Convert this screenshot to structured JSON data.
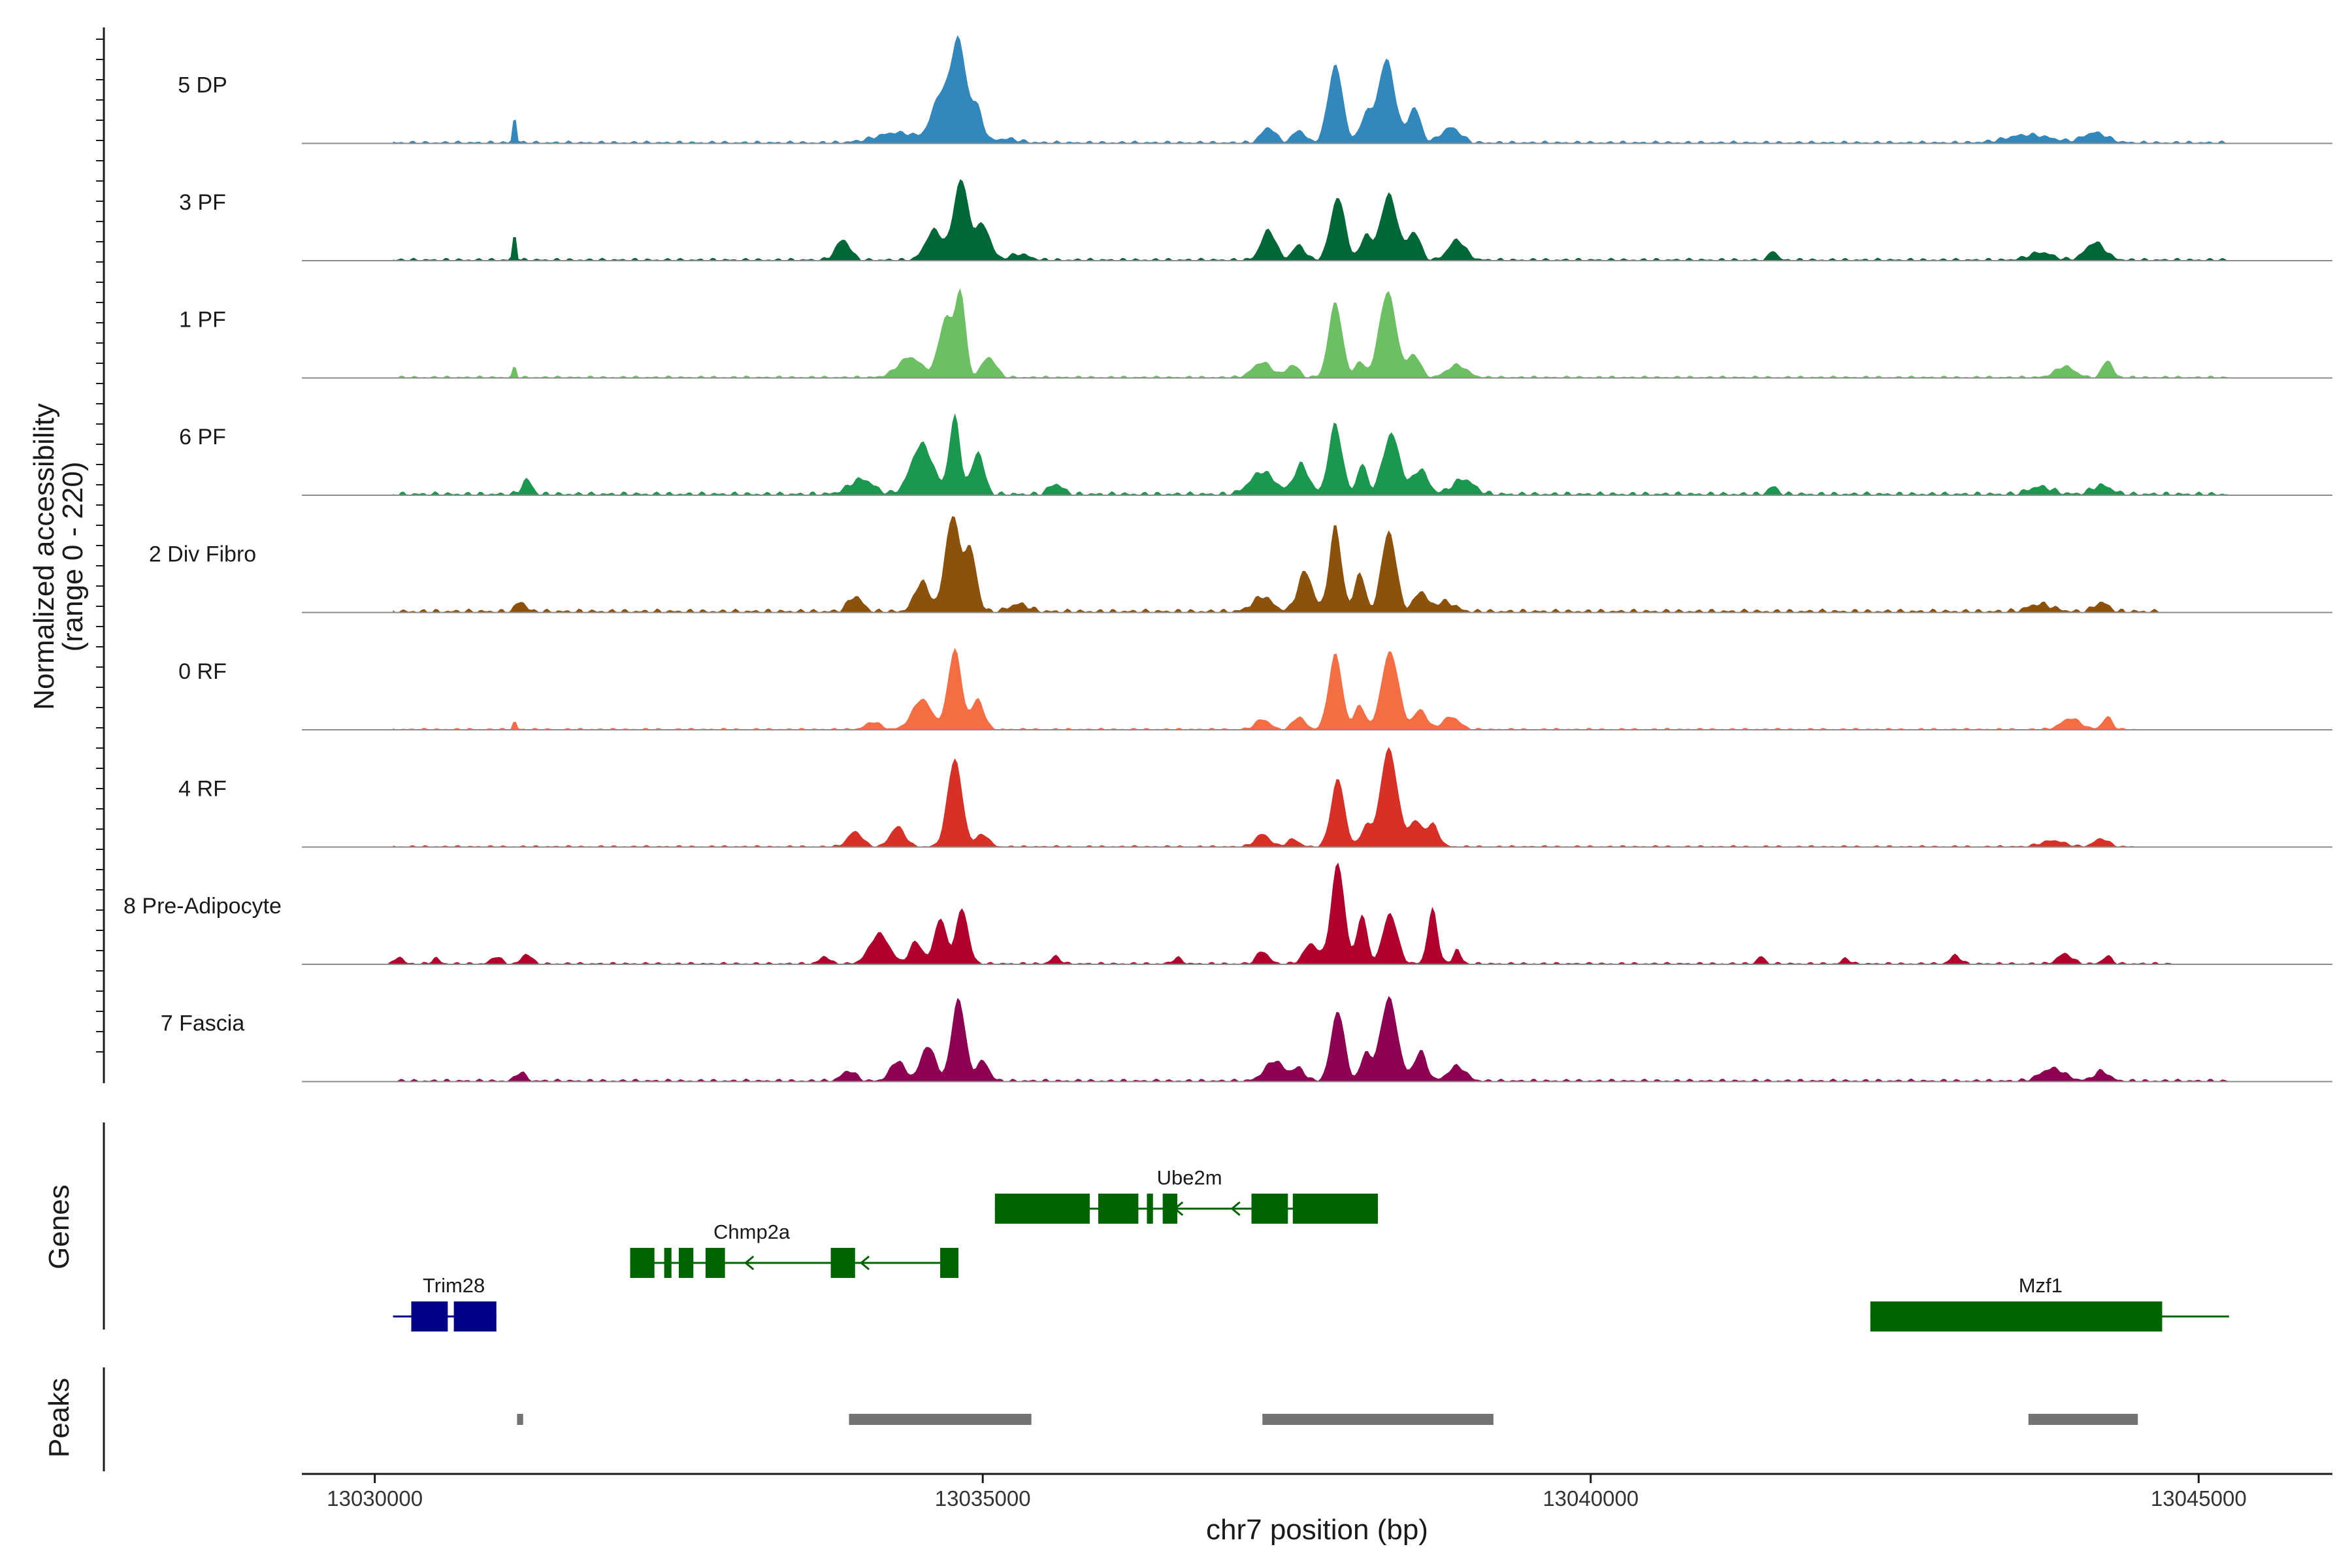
{
  "chart_data": {
    "type": "area",
    "xlabel": "chr7 position (bp)",
    "ylabel": [
      "Normalized accessibility",
      "(range 0 - 220)"
    ],
    "xlim": [
      13029400,
      13046100
    ],
    "ylim": [
      0,
      220
    ],
    "x_ticks": [
      {
        "value": 13030000,
        "label": "13030000"
      },
      {
        "value": 13035000,
        "label": "13035000"
      },
      {
        "value": 13040000,
        "label": "13040000"
      },
      {
        "value": 13045000,
        "label": "13045000"
      }
    ],
    "series": [
      {
        "name": "5 DP",
        "color": "#3288bd",
        "start": 13030150,
        "end": 13045250,
        "noise": 6,
        "bumps": [
          [
            13031150,
            60,
            14
          ],
          [
            13034300,
            20,
            180
          ],
          [
            13034650,
            90,
            70
          ],
          [
            13034800,
            200,
            60
          ],
          [
            13034950,
            70,
            50
          ],
          [
            13035200,
            8,
            100
          ],
          [
            13037350,
            30,
            60
          ],
          [
            13037600,
            25,
            50
          ],
          [
            13037900,
            155,
            60
          ],
          [
            13038150,
            55,
            45
          ],
          [
            13038320,
            165,
            70
          ],
          [
            13038550,
            70,
            50
          ],
          [
            13038850,
            30,
            80
          ],
          [
            13043600,
            16,
            180
          ],
          [
            13044150,
            20,
            100
          ]
        ]
      },
      {
        "name": "3 PF",
        "color": "#006837",
        "start": 13030150,
        "end": 13045250,
        "noise": 6,
        "bumps": [
          [
            13031150,
            60,
            14
          ],
          [
            13033850,
            40,
            60
          ],
          [
            13034600,
            60,
            70
          ],
          [
            13034820,
            160,
            60
          ],
          [
            13035000,
            70,
            60
          ],
          [
            13035300,
            12,
            80
          ],
          [
            13037350,
            60,
            60
          ],
          [
            13037600,
            30,
            50
          ],
          [
            13037920,
            125,
            60
          ],
          [
            13038150,
            50,
            40
          ],
          [
            13038340,
            130,
            70
          ],
          [
            13038550,
            55,
            50
          ],
          [
            13038900,
            40,
            70
          ],
          [
            13041500,
            20,
            30
          ],
          [
            13043700,
            15,
            100
          ],
          [
            13044150,
            35,
            80
          ]
        ]
      },
      {
        "name": "1 PF",
        "color": "#6cbf62",
        "start": 13030150,
        "end": 13045250,
        "noise": 5,
        "bumps": [
          [
            13031150,
            25,
            14
          ],
          [
            13034400,
            40,
            100
          ],
          [
            13034700,
            120,
            60
          ],
          [
            13034820,
            160,
            40
          ],
          [
            13035050,
            40,
            60
          ],
          [
            13037300,
            30,
            80
          ],
          [
            13037550,
            25,
            50
          ],
          [
            13037900,
            150,
            55
          ],
          [
            13038100,
            30,
            40
          ],
          [
            13038330,
            170,
            70
          ],
          [
            13038550,
            45,
            50
          ],
          [
            13038900,
            25,
            80
          ],
          [
            13043900,
            22,
            80
          ],
          [
            13044250,
            35,
            40
          ]
        ]
      },
      {
        "name": "6 PF",
        "color": "#1a9850",
        "start": 13030150,
        "end": 13045250,
        "noise": 8,
        "bumps": [
          [
            13031250,
            30,
            40
          ],
          [
            13034000,
            30,
            100
          ],
          [
            13034500,
            100,
            90
          ],
          [
            13034770,
            155,
            45
          ],
          [
            13034960,
            85,
            50
          ],
          [
            13035600,
            20,
            60
          ],
          [
            13037300,
            45,
            100
          ],
          [
            13037620,
            60,
            60
          ],
          [
            13037900,
            140,
            55
          ],
          [
            13038120,
            60,
            40
          ],
          [
            13038360,
            120,
            70
          ],
          [
            13038600,
            50,
            60
          ],
          [
            13038950,
            30,
            90
          ],
          [
            13041500,
            15,
            40
          ],
          [
            13043700,
            15,
            100
          ],
          [
            13044200,
            18,
            80
          ]
        ]
      },
      {
        "name": "2 Div Fibro",
        "color": "#8c510a",
        "start": 13030150,
        "end": 13044700,
        "noise": 8,
        "bumps": [
          [
            13031200,
            20,
            40
          ],
          [
            13033950,
            30,
            60
          ],
          [
            13034500,
            60,
            60
          ],
          [
            13034750,
            190,
            60
          ],
          [
            13034900,
            120,
            50
          ],
          [
            13035300,
            15,
            80
          ],
          [
            13037300,
            30,
            80
          ],
          [
            13037650,
            80,
            60
          ],
          [
            13037900,
            170,
            50
          ],
          [
            13038100,
            80,
            40
          ],
          [
            13038340,
            160,
            60
          ],
          [
            13038600,
            40,
            50
          ],
          [
            13038800,
            20,
            80
          ],
          [
            13043700,
            15,
            100
          ],
          [
            13044200,
            18,
            60
          ]
        ]
      },
      {
        "name": "0 RF",
        "color": "#f46d43",
        "start": 13030150,
        "end": 13044500,
        "noise": 4,
        "bumps": [
          [
            13031150,
            18,
            14
          ],
          [
            13034100,
            15,
            60
          ],
          [
            13034500,
            60,
            80
          ],
          [
            13034770,
            160,
            55
          ],
          [
            13034960,
            60,
            50
          ],
          [
            13037300,
            20,
            60
          ],
          [
            13037600,
            25,
            50
          ],
          [
            13037900,
            150,
            55
          ],
          [
            13038100,
            50,
            40
          ],
          [
            13038350,
            155,
            70
          ],
          [
            13038600,
            40,
            50
          ],
          [
            13038850,
            25,
            70
          ],
          [
            13043950,
            22,
            80
          ],
          [
            13044250,
            25,
            40
          ]
        ]
      },
      {
        "name": "4 RF",
        "color": "#d73027",
        "start": 13030150,
        "end": 13044500,
        "noise": 4,
        "bumps": [
          [
            13033950,
            30,
            60
          ],
          [
            13034300,
            40,
            60
          ],
          [
            13034770,
            175,
            60
          ],
          [
            13035000,
            25,
            50
          ],
          [
            13037300,
            25,
            60
          ],
          [
            13037550,
            15,
            50
          ],
          [
            13037920,
            135,
            55
          ],
          [
            13038150,
            40,
            40
          ],
          [
            13038340,
            195,
            70
          ],
          [
            13038560,
            50,
            50
          ],
          [
            13038700,
            45,
            50
          ],
          [
            13043800,
            12,
            100
          ],
          [
            13044200,
            16,
            60
          ]
        ]
      },
      {
        "name": "8 Pre-Adipocyte",
        "color": "#b2002d",
        "start": 13030100,
        "end": 13044800,
        "noise": 5,
        "bumps": [
          [
            13030200,
            15,
            30
          ],
          [
            13030500,
            12,
            30
          ],
          [
            13031000,
            15,
            40
          ],
          [
            13031250,
            20,
            40
          ],
          [
            13033700,
            15,
            40
          ],
          [
            13034150,
            60,
            80
          ],
          [
            13034450,
            45,
            50
          ],
          [
            13034650,
            90,
            50
          ],
          [
            13034830,
            110,
            50
          ],
          [
            13035600,
            15,
            40
          ],
          [
            13036600,
            12,
            40
          ],
          [
            13037300,
            25,
            50
          ],
          [
            13037700,
            40,
            60
          ],
          [
            13037920,
            200,
            55
          ],
          [
            13038120,
            100,
            40
          ],
          [
            13038350,
            100,
            60
          ],
          [
            13038700,
            110,
            40
          ],
          [
            13038900,
            30,
            30
          ],
          [
            13041400,
            15,
            30
          ],
          [
            13042100,
            12,
            30
          ],
          [
            13043000,
            18,
            40
          ],
          [
            13043900,
            20,
            60
          ],
          [
            13044250,
            15,
            40
          ]
        ]
      },
      {
        "name": "7 Fascia",
        "color": "#8e0152",
        "start": 13030150,
        "end": 13045250,
        "noise": 6,
        "bumps": [
          [
            13031200,
            18,
            40
          ],
          [
            13033900,
            20,
            60
          ],
          [
            13034300,
            40,
            60
          ],
          [
            13034550,
            70,
            60
          ],
          [
            13034800,
            165,
            55
          ],
          [
            13035000,
            40,
            50
          ],
          [
            13037400,
            40,
            80
          ],
          [
            13037600,
            25,
            50
          ],
          [
            13037920,
            140,
            55
          ],
          [
            13038150,
            55,
            40
          ],
          [
            13038340,
            165,
            70
          ],
          [
            13038600,
            60,
            50
          ],
          [
            13038900,
            30,
            70
          ],
          [
            13043800,
            25,
            100
          ],
          [
            13044200,
            20,
            60
          ]
        ]
      }
    ],
    "genes": {
      "title": "Genes",
      "color_default": "#006400",
      "items": [
        {
          "name": "Ube2m",
          "row": 0,
          "color": "#006400",
          "start": 13035100,
          "end": 13038250,
          "exons": [
            [
              13035100,
              13035880
            ],
            [
              13035950,
              13036280
            ],
            [
              13036350,
              13036400
            ],
            [
              13036480,
              13036600
            ],
            [
              13037210,
              13037510
            ],
            [
              13037550,
              13038250
            ]
          ],
          "arrows": [
            13036580,
            13037050
          ]
        },
        {
          "name": "Chmp2a",
          "row": 1,
          "color": "#006400",
          "start": 13032100,
          "end": 13034800,
          "exons": [
            [
              13032100,
              13032300
            ],
            [
              13032380,
              13032440
            ],
            [
              13032500,
              13032620
            ],
            [
              13032720,
              13032880
            ],
            [
              13033750,
              13033950
            ],
            [
              13034650,
              13034800
            ]
          ],
          "arrows": [
            13033050,
            13034000
          ]
        },
        {
          "name": "Trim28",
          "row": 2,
          "color": "#00008b",
          "start": 13030150,
          "end": 13031000,
          "exons": [
            [
              13030300,
              13030600
            ],
            [
              13030650,
              13031000
            ]
          ],
          "arrows": []
        },
        {
          "name": "Mzf1",
          "row": 2,
          "color": "#006400",
          "start": 13042300,
          "end": 13045250,
          "exons": [
            [
              13042300,
              13044700
            ]
          ],
          "arrows": []
        }
      ]
    },
    "peaks": {
      "title": "Peaks",
      "color": "#737373",
      "items": [
        [
          13031170,
          13031220
        ],
        [
          13033900,
          13035400
        ],
        [
          13037300,
          13039200
        ],
        [
          13043600,
          13044500
        ]
      ]
    }
  }
}
